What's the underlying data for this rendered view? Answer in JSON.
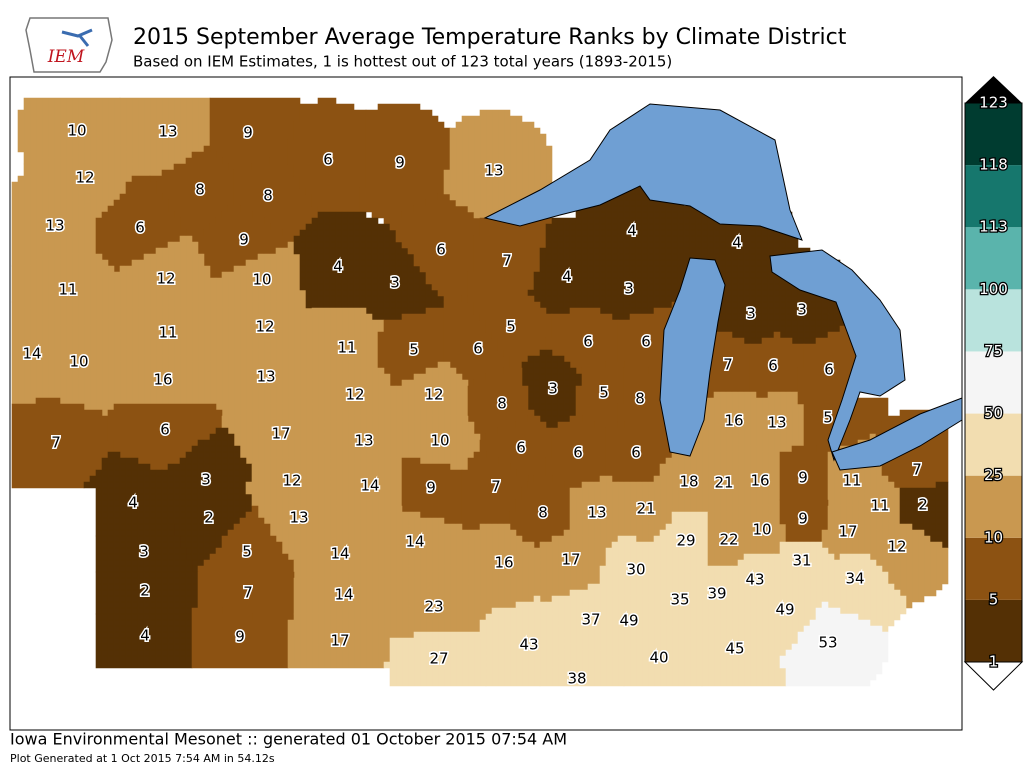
{
  "header": {
    "logo": "IEM",
    "title": "2015 September Average Temperature Ranks by Climate District",
    "subtitle": "Based on IEM Estimates, 1 is hottest out of 123 total years (1893-2015)"
  },
  "map": {
    "districts": [
      10,
      13,
      9,
      12,
      8,
      8,
      13,
      6,
      9,
      11,
      12,
      10,
      11,
      12,
      14,
      10,
      16,
      13,
      6,
      9,
      4,
      3,
      6,
      11,
      5,
      6,
      13,
      7,
      4,
      3,
      5,
      6,
      6,
      3,
      5,
      8,
      4,
      4,
      3,
      3,
      7,
      6,
      6,
      16,
      13,
      5,
      12,
      12,
      8,
      13,
      10,
      6,
      14,
      9,
      7,
      7,
      6,
      17,
      4,
      3,
      2,
      12,
      13,
      3,
      5,
      14,
      2,
      7,
      14,
      4,
      9,
      17,
      6,
      6,
      8,
      13,
      21,
      17,
      30,
      37,
      49,
      38,
      14,
      16,
      23,
      43,
      27,
      18,
      21,
      16,
      29,
      22,
      10,
      35,
      39,
      43,
      9,
      11,
      7,
      9,
      11,
      2,
      17,
      12,
      31,
      34,
      40,
      45,
      49,
      53
    ]
  },
  "colorbar": {
    "ticks": [
      1,
      5,
      10,
      25,
      50,
      75,
      100,
      113,
      118,
      123
    ],
    "colors": [
      "#543005",
      "#8c5212",
      "#c99850",
      "#f2ddb0",
      "#f5f5f5",
      "#b9e3dd",
      "#5ab4ac",
      "#16776d",
      "#003c30"
    ]
  },
  "footer": {
    "source": "Iowa Environmental Mesonet :: generated 01 October 2015 07:54 AM",
    "generated": "Plot Generated at 1 Oct 2015 7:54 AM in 54.12s"
  }
}
